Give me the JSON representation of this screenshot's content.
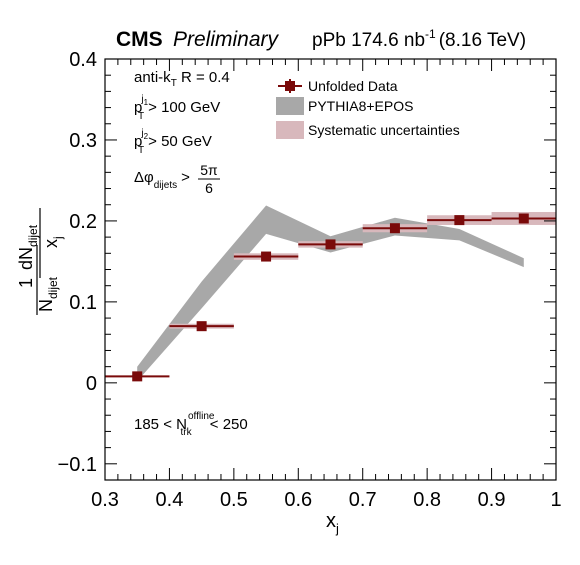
{
  "header": {
    "cms": "CMS",
    "preliminary": "Preliminary",
    "lumi_prefix": "pPb 174.6 nb",
    "lumi_exp": "-1",
    "energy": "(8.16 TeV)"
  },
  "cuts": {
    "algo_a": "anti-k",
    "algo_sub": "T",
    "algo_b": " R = 0.4",
    "pt1_p": "p",
    "pt1_sup": "j",
    "pt1_supsub": "1",
    "pt1_sub": "T",
    "pt1_rest": "> 100 GeV",
    "pt2_p": "p",
    "pt2_sup": "j",
    "pt2_supsub": "2",
    "pt2_sub": "T",
    "pt2_rest": "> 50 GeV",
    "dphi_sym": "Δφ",
    "dphi_sub": "dijets",
    "dphi_gt": ">",
    "dphi_num": "5π",
    "dphi_den": "6"
  },
  "ntrk": {
    "a": "185 < N",
    "sup": "offline",
    "sub": "trk",
    "b": " < 250"
  },
  "ylabel": {
    "one": "1",
    "n": "N",
    "n_sub": "dijet",
    "dn": "dN",
    "dn_sub": "dijet",
    "x": "x",
    "x_sub": "j"
  },
  "chart_data": {
    "type": "line",
    "xlabel": "x",
    "xlabel_sub": "j",
    "xlim": [
      0.3,
      1.0
    ],
    "ylim": [
      -0.12,
      0.4
    ],
    "x_ticks": [
      "0.3",
      "0.4",
      "0.5",
      "0.6",
      "0.7",
      "0.8",
      "0.9",
      "1"
    ],
    "x_tick_values": [
      0.3,
      0.4,
      0.5,
      0.6,
      0.7,
      0.8,
      0.9,
      1.0
    ],
    "y_ticks": [
      "−0.1",
      "0",
      "0.1",
      "0.2",
      "0.3",
      "0.4"
    ],
    "y_tick_values": [
      -0.1,
      0.0,
      0.1,
      0.2,
      0.3,
      0.4
    ],
    "legend_position": "top-right",
    "legend": [
      "Unfolded Data",
      "PYTHIA8+EPOS",
      "Systematic uncertainties"
    ],
    "colors": {
      "data": "#7a0a0a",
      "pythia": "#a8a8a8",
      "syst": "#d8b8bc"
    },
    "series": [
      {
        "name": "Unfolded Data",
        "x": [
          0.35,
          0.45,
          0.55,
          0.65,
          0.75,
          0.85,
          0.95
        ],
        "y": [
          0.008,
          0.07,
          0.156,
          0.171,
          0.191,
          0.201,
          0.203
        ],
        "x_low": [
          0.3,
          0.4,
          0.5,
          0.6,
          0.7,
          0.8,
          0.9
        ],
        "x_high": [
          0.4,
          0.5,
          0.6,
          0.7,
          0.8,
          0.9,
          1.0
        ],
        "syst": [
          0.001,
          0.003,
          0.004,
          0.004,
          0.005,
          0.006,
          0.008
        ]
      },
      {
        "name": "PYTHIA8+EPOS",
        "x": [
          0.35,
          0.45,
          0.55,
          0.65,
          0.75,
          0.85,
          0.95
        ],
        "y_low": [
          0.002,
          0.092,
          0.184,
          0.161,
          0.182,
          0.176,
          0.143
        ],
        "y_high": [
          0.02,
          0.125,
          0.219,
          0.181,
          0.204,
          0.19,
          0.154
        ]
      }
    ]
  }
}
